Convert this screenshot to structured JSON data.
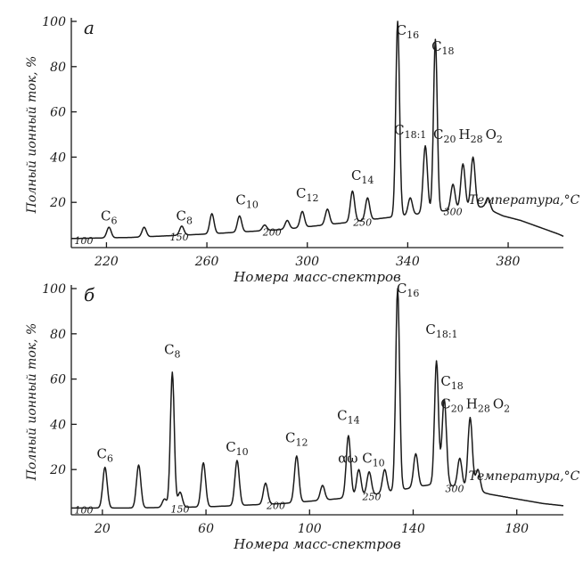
{
  "chart_data": [
    {
      "type": "line",
      "panel_label": "а",
      "ylabel": "Полный ионный ток, %",
      "xlabel": "Номера масс-спектров",
      "x_ticks": [
        220,
        260,
        300,
        340,
        380
      ],
      "y_ticks": [
        20,
        40,
        60,
        80,
        100
      ],
      "xlim": [
        206,
        402
      ],
      "ylim": [
        0,
        100
      ],
      "temperature_label": "Температура,°C",
      "temperature_ticks": [
        {
          "x": 197,
          "label": "100"
        },
        {
          "x": 249,
          "label": "150"
        },
        {
          "x": 286,
          "label": "200"
        },
        {
          "x": 322,
          "label": "250"
        },
        {
          "x": 358,
          "label": "300"
        }
      ],
      "peak_labels": [
        {
          "x": 221,
          "y": 12,
          "name": "C",
          "sub": "6"
        },
        {
          "x": 251,
          "y": 12,
          "name": "C",
          "sub": "8"
        },
        {
          "x": 276,
          "y": 19,
          "name": "C",
          "sub": "10"
        },
        {
          "x": 300,
          "y": 22,
          "name": "C",
          "sub": "12"
        },
        {
          "x": 322,
          "y": 30,
          "name": "C",
          "sub": "14"
        },
        {
          "x": 340,
          "y": 94,
          "name": "C",
          "sub": "16"
        },
        {
          "x": 354,
          "y": 87,
          "name": "C",
          "sub": "18"
        },
        {
          "x": 341,
          "y": 50,
          "name": "C",
          "sub": "18:1"
        },
        {
          "x": 364,
          "y": 48,
          "name": "C",
          "sub": "20",
          "tail": [
            {
              "t": "H",
              "s": "28"
            },
            {
              "t": "O",
              "s": "2"
            }
          ]
        }
      ],
      "baseline": [
        [
          206,
          4
        ],
        [
          230,
          4.5
        ],
        [
          260,
          6
        ],
        [
          290,
          8
        ],
        [
          315,
          11
        ],
        [
          330,
          13
        ],
        [
          345,
          15
        ],
        [
          360,
          17
        ],
        [
          370,
          18
        ],
        [
          378,
          14
        ],
        [
          385,
          12
        ],
        [
          395,
          8
        ],
        [
          400,
          6
        ],
        [
          402,
          5
        ]
      ],
      "peaks": [
        {
          "x": 221,
          "y": 9
        },
        {
          "x": 235,
          "y": 9
        },
        {
          "x": 250,
          "y": 9.5
        },
        {
          "x": 262,
          "y": 15
        },
        {
          "x": 273,
          "y": 14
        },
        {
          "x": 283,
          "y": 10
        },
        {
          "x": 292,
          "y": 12
        },
        {
          "x": 298,
          "y": 16
        },
        {
          "x": 308,
          "y": 17
        },
        {
          "x": 318,
          "y": 25
        },
        {
          "x": 324,
          "y": 22
        },
        {
          "x": 336,
          "y": 100
        },
        {
          "x": 341,
          "y": 22
        },
        {
          "x": 347,
          "y": 45
        },
        {
          "x": 351,
          "y": 92
        },
        {
          "x": 358,
          "y": 28
        },
        {
          "x": 362,
          "y": 37
        },
        {
          "x": 366,
          "y": 40
        },
        {
          "x": 372,
          "y": 22
        }
      ]
    },
    {
      "type": "line",
      "panel_label": "б",
      "ylabel": "Полный ионный ток, %",
      "xlabel": "Номера масс-спектров",
      "x_ticks": [
        20,
        60,
        100,
        140,
        180
      ],
      "y_ticks": [
        20,
        40,
        60,
        80,
        100
      ],
      "xlim": [
        8,
        198
      ],
      "ylim": [
        0,
        100
      ],
      "temperature_label": "Температура,°C",
      "temperature_ticks": [
        {
          "x": 0,
          "label": "100"
        },
        {
          "x": 50,
          "label": "150"
        },
        {
          "x": 87,
          "label": "200"
        },
        {
          "x": 124,
          "label": "250"
        },
        {
          "x": 156,
          "label": "300"
        }
      ],
      "peak_labels": [
        {
          "x": 21,
          "y": 25,
          "name": "C",
          "sub": "6"
        },
        {
          "x": 47,
          "y": 71,
          "name": "C",
          "sub": "8"
        },
        {
          "x": 72,
          "y": 28,
          "name": "C",
          "sub": "10"
        },
        {
          "x": 95,
          "y": 32,
          "name": "C",
          "sub": "12"
        },
        {
          "x": 115,
          "y": 42,
          "name": "C",
          "sub": "14"
        },
        {
          "x": 120,
          "y": 23,
          "name": "αω C",
          "sub": "10"
        },
        {
          "x": 138,
          "y": 98,
          "name": "C",
          "sub": "16"
        },
        {
          "x": 151,
          "y": 80,
          "name": "C",
          "sub": "18:1"
        },
        {
          "x": 155,
          "y": 57,
          "name": "C",
          "sub": "18"
        },
        {
          "x": 164,
          "y": 47,
          "name": "C",
          "sub": "20",
          "tail": [
            {
              "t": "H",
              "s": "28"
            },
            {
              "t": "O",
              "s": "2"
            }
          ]
        }
      ],
      "baseline": [
        [
          8,
          3
        ],
        [
          30,
          3
        ],
        [
          60,
          3.5
        ],
        [
          90,
          5
        ],
        [
          110,
          7
        ],
        [
          125,
          9
        ],
        [
          135,
          11
        ],
        [
          145,
          13
        ],
        [
          150,
          14
        ],
        [
          158,
          12
        ],
        [
          163,
          11
        ],
        [
          170,
          9
        ],
        [
          180,
          7
        ],
        [
          190,
          5
        ],
        [
          198,
          4
        ]
      ],
      "peaks": [
        {
          "x": 21,
          "y": 21
        },
        {
          "x": 34,
          "y": 22
        },
        {
          "x": 44,
          "y": 7
        },
        {
          "x": 47,
          "y": 63
        },
        {
          "x": 50,
          "y": 10
        },
        {
          "x": 59,
          "y": 23
        },
        {
          "x": 72,
          "y": 24
        },
        {
          "x": 83,
          "y": 14
        },
        {
          "x": 95,
          "y": 26
        },
        {
          "x": 105,
          "y": 13
        },
        {
          "x": 115,
          "y": 35
        },
        {
          "x": 119,
          "y": 20
        },
        {
          "x": 123,
          "y": 19
        },
        {
          "x": 129,
          "y": 20
        },
        {
          "x": 134,
          "y": 100
        },
        {
          "x": 141,
          "y": 27
        },
        {
          "x": 149,
          "y": 68
        },
        {
          "x": 152,
          "y": 51
        },
        {
          "x": 158,
          "y": 25
        },
        {
          "x": 162,
          "y": 43
        },
        {
          "x": 165,
          "y": 20
        }
      ]
    }
  ]
}
